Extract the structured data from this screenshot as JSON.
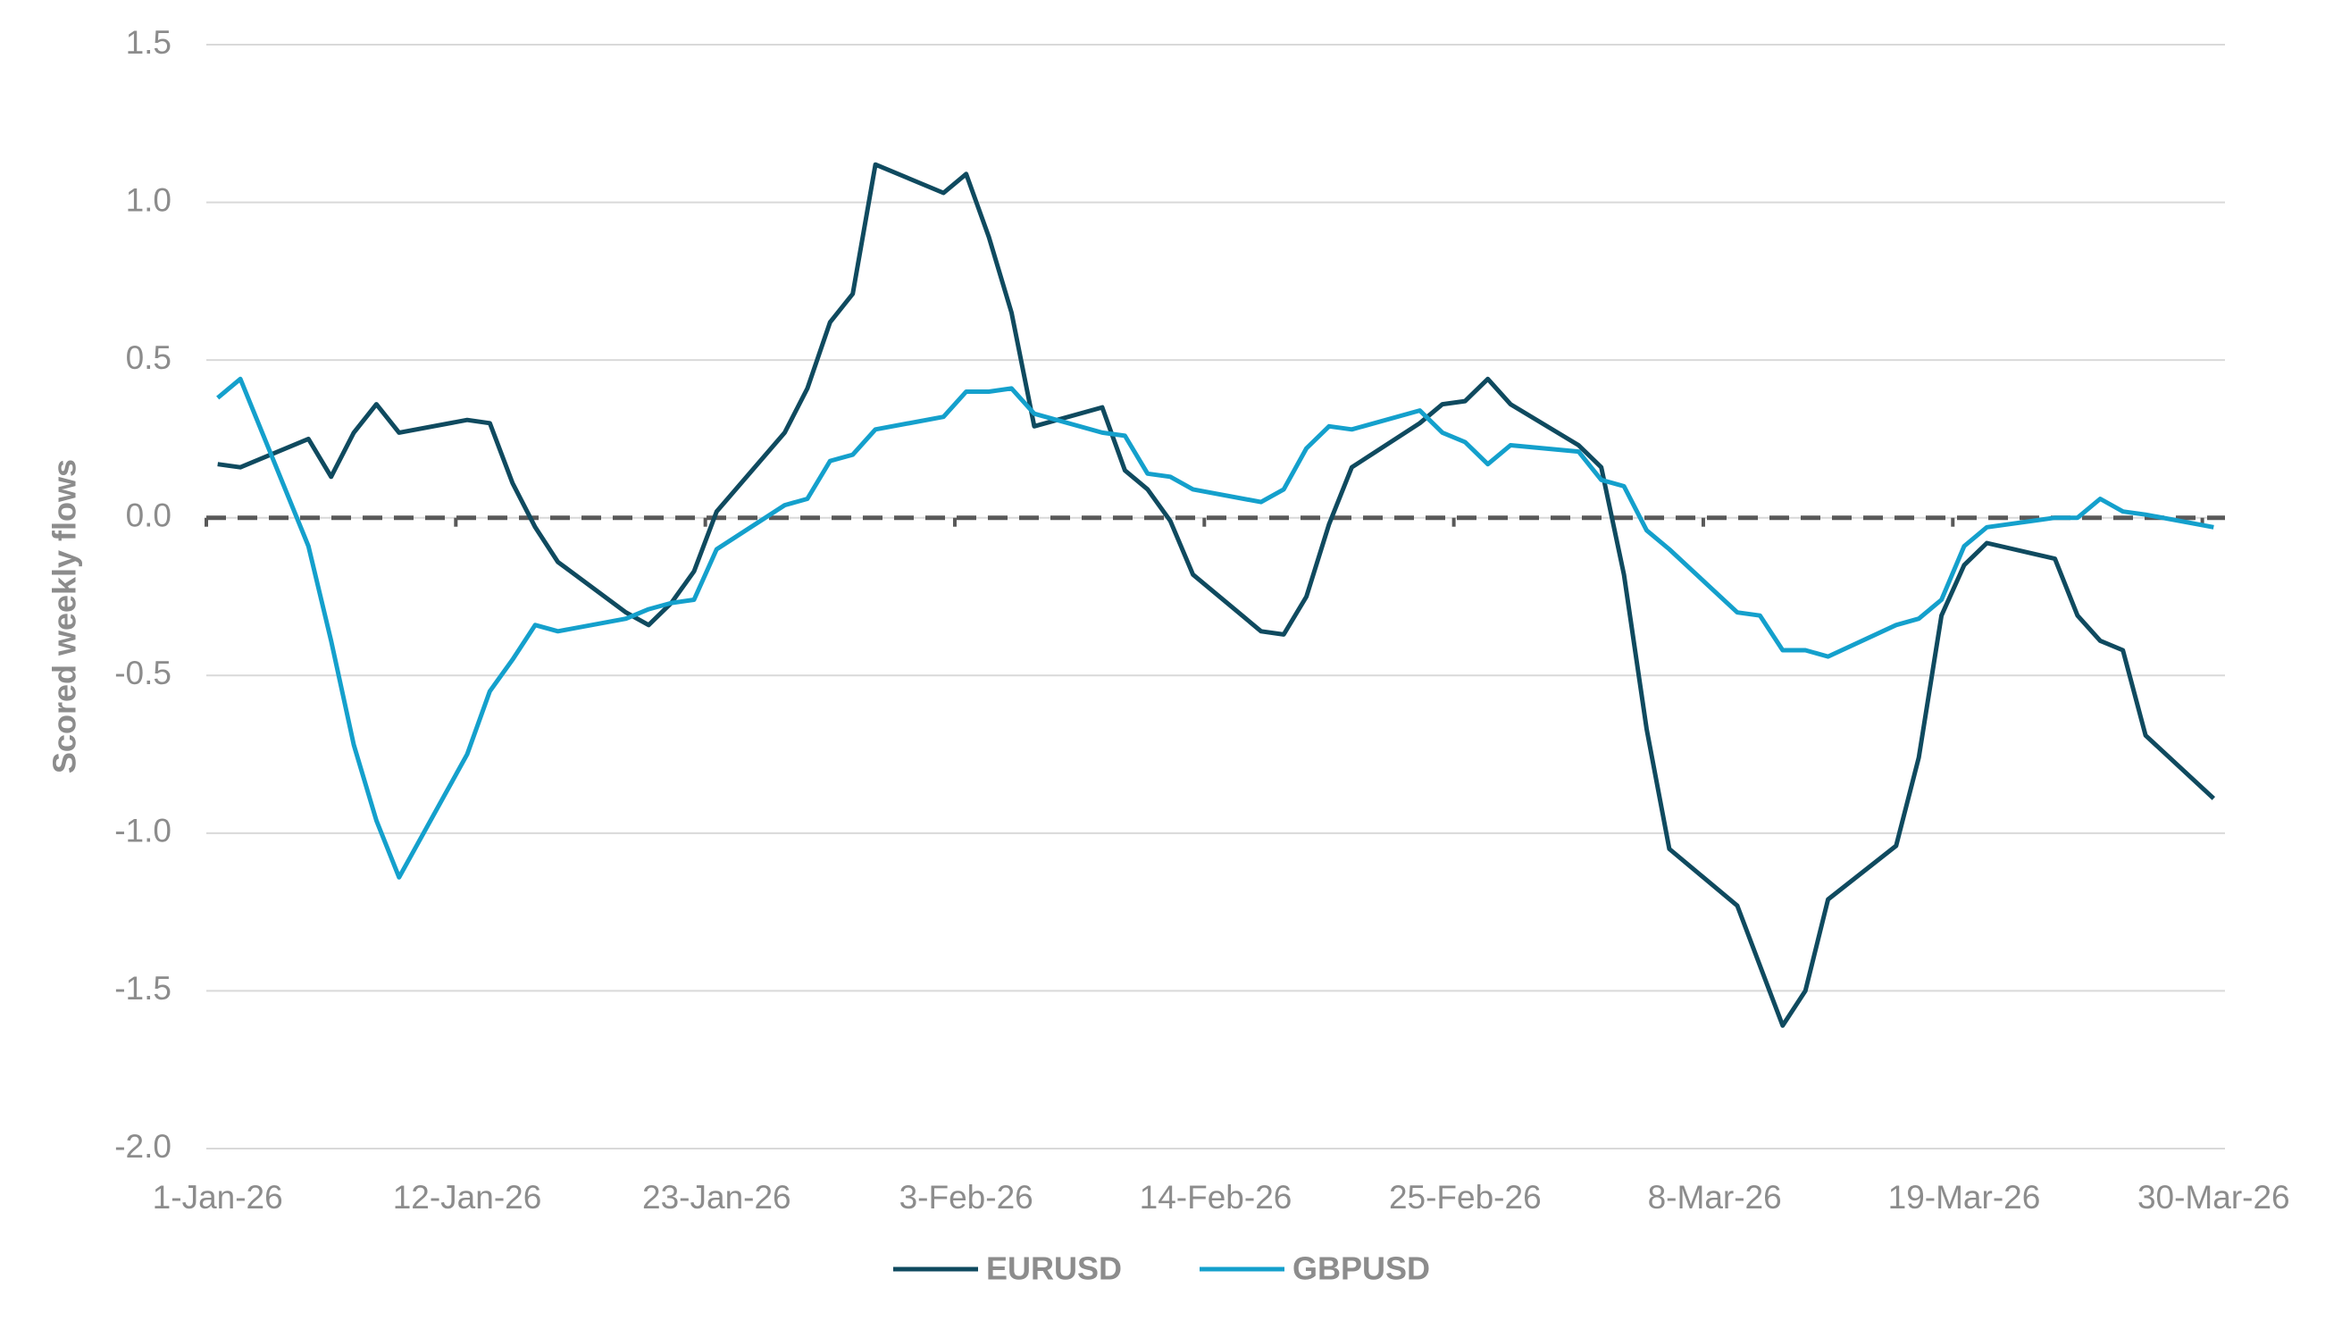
{
  "chart_data": {
    "type": "line",
    "y_label": "Scored weekly flows",
    "x": [
      "2026-01-01",
      "2026-01-02",
      "2026-01-05",
      "2026-01-06",
      "2026-01-07",
      "2026-01-08",
      "2026-01-09",
      "2026-01-12",
      "2026-01-13",
      "2026-01-14",
      "2026-01-15",
      "2026-01-16",
      "2026-01-19",
      "2026-01-20",
      "2026-01-21",
      "2026-01-22",
      "2026-01-23",
      "2026-01-26",
      "2026-01-27",
      "2026-01-28",
      "2026-01-29",
      "2026-01-30",
      "2026-02-02",
      "2026-02-03",
      "2026-02-04",
      "2026-02-05",
      "2026-02-06",
      "2026-02-09",
      "2026-02-10",
      "2026-02-11",
      "2026-02-12",
      "2026-02-13",
      "2026-02-16",
      "2026-02-17",
      "2026-02-18",
      "2026-02-19",
      "2026-02-20",
      "2026-02-23",
      "2026-02-24",
      "2026-02-25",
      "2026-02-26",
      "2026-02-27",
      "2026-03-02",
      "2026-03-03",
      "2026-03-04",
      "2026-03-05",
      "2026-03-06",
      "2026-03-09",
      "2026-03-10",
      "2026-03-11",
      "2026-03-12",
      "2026-03-13",
      "2026-03-16",
      "2026-03-17",
      "2026-03-18",
      "2026-03-19",
      "2026-03-20",
      "2026-03-23",
      "2026-03-24",
      "2026-03-25",
      "2026-03-26",
      "2026-03-27",
      "2026-03-30"
    ],
    "series": [
      {
        "name": "EURUSD",
        "color": "#0f4a5f",
        "values": [
          0.17,
          0.16,
          0.25,
          0.13,
          0.27,
          0.36,
          0.27,
          0.31,
          0.3,
          0.11,
          -0.03,
          -0.14,
          -0.3,
          -0.34,
          -0.27,
          -0.17,
          0.02,
          0.27,
          0.41,
          0.62,
          0.71,
          1.12,
          1.03,
          1.09,
          0.89,
          0.65,
          0.29,
          0.35,
          0.15,
          0.09,
          -0.01,
          -0.18,
          -0.36,
          -0.37,
          -0.25,
          -0.02,
          0.16,
          0.3,
          0.36,
          0.37,
          0.44,
          0.36,
          0.23,
          0.16,
          -0.18,
          -0.67,
          -1.05,
          -1.23,
          -1.42,
          -1.61,
          -1.5,
          -1.21,
          -1.04,
          -0.76,
          -0.31,
          -0.15,
          -0.08,
          -0.13,
          -0.31,
          -0.39,
          -0.42,
          -0.69,
          -0.89
        ]
      },
      {
        "name": "GBPUSD",
        "color": "#14a0cc",
        "values": [
          0.38,
          0.44,
          -0.09,
          -0.39,
          -0.72,
          -0.96,
          -1.14,
          -0.75,
          -0.55,
          -0.45,
          -0.34,
          -0.36,
          -0.32,
          -0.29,
          -0.27,
          -0.26,
          -0.1,
          0.04,
          0.06,
          0.18,
          0.2,
          0.28,
          0.32,
          0.4,
          0.4,
          0.41,
          0.33,
          0.27,
          0.26,
          0.14,
          0.13,
          0.09,
          0.05,
          0.09,
          0.22,
          0.29,
          0.28,
          0.34,
          0.27,
          0.24,
          0.17,
          0.23,
          0.21,
          0.12,
          0.1,
          -0.04,
          -0.1,
          -0.3,
          -0.31,
          -0.42,
          -0.42,
          -0.44,
          -0.34,
          -0.32,
          -0.26,
          -0.09,
          -0.03,
          0,
          0,
          0.06,
          0.02,
          0.01,
          -0.03
        ]
      }
    ],
    "xlim": [
      "2026-01-01",
      "2026-03-31"
    ],
    "xticks": [
      {
        "value": "2026-01-01",
        "label": "1-Jan-26"
      },
      {
        "value": "2026-01-12",
        "label": "12-Jan-26"
      },
      {
        "value": "2026-01-23",
        "label": "23-Jan-26"
      },
      {
        "value": "2026-02-03",
        "label": "3-Feb-26"
      },
      {
        "value": "2026-02-14",
        "label": "14-Feb-26"
      },
      {
        "value": "2026-02-25",
        "label": "25-Feb-26"
      },
      {
        "value": "2026-03-08",
        "label": "8-Mar-26"
      },
      {
        "value": "2026-03-19",
        "label": "19-Mar-26"
      },
      {
        "value": "2026-03-30",
        "label": "30-Mar-26"
      }
    ],
    "ylim": [
      -2.0,
      1.5
    ],
    "yticks": [
      1.5,
      {
        "value": 1.0,
        "label": "1.0"
      },
      0.5,
      {
        "value": 0,
        "label": "0.0"
      },
      -0.5,
      {
        "value": -1.0,
        "label": "-1.0"
      },
      -1.5,
      {
        "value": -2.0,
        "label": "-2.0"
      }
    ],
    "grid": true,
    "legend": "bottom"
  }
}
